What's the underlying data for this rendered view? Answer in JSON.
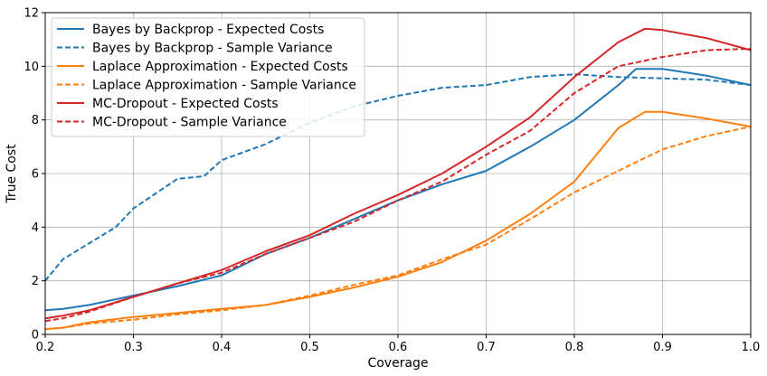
{
  "chart_data": {
    "type": "line",
    "title": "",
    "xlabel": "Coverage",
    "ylabel": "True Cost",
    "xlim": [
      0.2,
      1.0
    ],
    "ylim": [
      0,
      12
    ],
    "xticks": [
      0.2,
      0.3,
      0.4,
      0.5,
      0.6,
      0.7,
      0.8,
      0.9,
      1.0
    ],
    "xtick_labels": [
      "0.2",
      "0.3",
      "0.4",
      "0.5",
      "0.6",
      "0.7",
      "0.8",
      "0.9",
      "1.0"
    ],
    "yticks": [
      0,
      2,
      4,
      6,
      8,
      10,
      12
    ],
    "ytick_labels": [
      "0",
      "2",
      "4",
      "6",
      "8",
      "10",
      "12"
    ],
    "grid": true,
    "legend_position": "top-left",
    "series": [
      {
        "name": "Bayes by Backprop - Expected Costs",
        "color": "#1f77b4",
        "style": "solid",
        "x": [
          0.2,
          0.22,
          0.25,
          0.3,
          0.35,
          0.4,
          0.45,
          0.5,
          0.55,
          0.6,
          0.65,
          0.7,
          0.75,
          0.8,
          0.85,
          0.87,
          0.9,
          0.95,
          1.0
        ],
        "y": [
          0.9,
          0.95,
          1.1,
          1.45,
          1.8,
          2.2,
          3.0,
          3.6,
          4.3,
          5.0,
          5.6,
          6.1,
          7.0,
          8.0,
          9.3,
          9.9,
          9.9,
          9.65,
          9.3
        ]
      },
      {
        "name": "Bayes by Backprop - Sample Variance",
        "color": "#1f77b4",
        "style": "dashed",
        "x": [
          0.2,
          0.22,
          0.25,
          0.28,
          0.3,
          0.35,
          0.38,
          0.4,
          0.45,
          0.5,
          0.55,
          0.6,
          0.65,
          0.7,
          0.75,
          0.8,
          0.85,
          0.9,
          0.95,
          1.0
        ],
        "y": [
          2.0,
          2.8,
          3.4,
          4.0,
          4.7,
          5.8,
          5.9,
          6.5,
          7.1,
          7.9,
          8.5,
          8.9,
          9.2,
          9.3,
          9.6,
          9.7,
          9.6,
          9.55,
          9.5,
          9.3
        ]
      },
      {
        "name": "Laplace Approximation - Expected Costs",
        "color": "#ff7f0e",
        "style": "solid",
        "x": [
          0.2,
          0.22,
          0.25,
          0.3,
          0.35,
          0.4,
          0.45,
          0.5,
          0.55,
          0.6,
          0.65,
          0.7,
          0.75,
          0.8,
          0.85,
          0.88,
          0.9,
          0.95,
          1.0
        ],
        "y": [
          0.2,
          0.25,
          0.45,
          0.65,
          0.8,
          0.95,
          1.1,
          1.4,
          1.75,
          2.15,
          2.7,
          3.5,
          4.5,
          5.7,
          7.7,
          8.3,
          8.3,
          8.05,
          7.75
        ]
      },
      {
        "name": "Laplace Approximation - Sample Variance",
        "color": "#ff7f0e",
        "style": "dashed",
        "x": [
          0.2,
          0.22,
          0.25,
          0.3,
          0.35,
          0.4,
          0.45,
          0.5,
          0.55,
          0.6,
          0.65,
          0.7,
          0.75,
          0.8,
          0.85,
          0.9,
          0.95,
          1.0
        ],
        "y": [
          0.2,
          0.25,
          0.4,
          0.55,
          0.75,
          0.9,
          1.1,
          1.45,
          1.85,
          2.2,
          2.8,
          3.35,
          4.3,
          5.3,
          6.1,
          6.9,
          7.4,
          7.75
        ]
      },
      {
        "name": "MC-Dropout - Expected Costs",
        "color": "#d62728",
        "style": "solid",
        "x": [
          0.2,
          0.22,
          0.25,
          0.3,
          0.35,
          0.4,
          0.45,
          0.5,
          0.55,
          0.6,
          0.65,
          0.7,
          0.75,
          0.8,
          0.85,
          0.88,
          0.9,
          0.95,
          1.0
        ],
        "y": [
          0.6,
          0.7,
          0.9,
          1.4,
          1.9,
          2.4,
          3.1,
          3.7,
          4.5,
          5.2,
          6.0,
          7.0,
          8.1,
          9.6,
          10.9,
          11.4,
          11.35,
          11.05,
          10.6
        ]
      },
      {
        "name": "MC-Dropout - Sample Variance",
        "color": "#d62728",
        "style": "dashed",
        "x": [
          0.2,
          0.22,
          0.25,
          0.3,
          0.35,
          0.4,
          0.45,
          0.5,
          0.55,
          0.6,
          0.65,
          0.7,
          0.75,
          0.8,
          0.85,
          0.9,
          0.95,
          1.0
        ],
        "y": [
          0.5,
          0.6,
          0.85,
          1.4,
          1.9,
          2.3,
          3.0,
          3.6,
          4.2,
          5.0,
          5.7,
          6.7,
          7.6,
          9.0,
          10.0,
          10.35,
          10.6,
          10.65
        ]
      }
    ]
  }
}
